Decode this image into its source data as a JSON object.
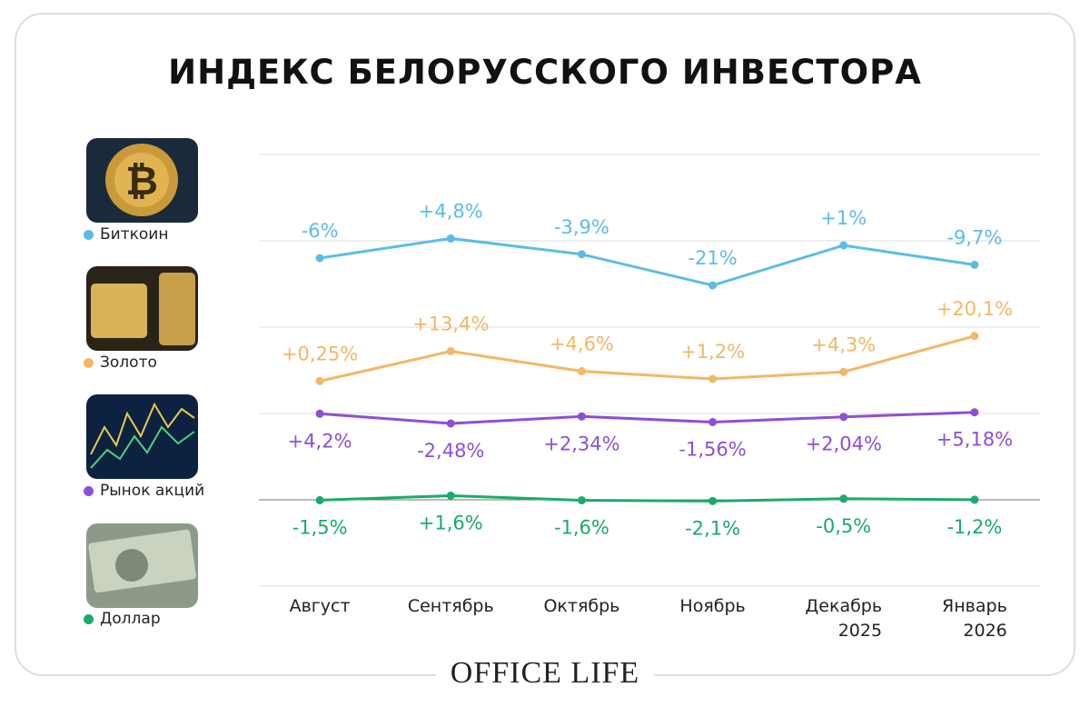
{
  "chart_data": {
    "type": "line",
    "title": "ИНДЕКС БЕЛОРУССКОГО ИНВЕСТОРА",
    "categories": [
      "Август",
      "Сентябрь",
      "Октябрь",
      "Ноябрь",
      "Декабрь 2025",
      "Январь 2026"
    ],
    "series": [
      {
        "name": "Биткоин",
        "color": "#5bbde6",
        "values": [
          -6,
          4.8,
          -3.9,
          -21,
          1,
          -9.7
        ],
        "value_labels": [
          "-6%",
          "+4,8%",
          "-3,9%",
          "-21%",
          "+1%",
          "-9,7%"
        ]
      },
      {
        "name": "Золото",
        "color": "#f2b865",
        "values": [
          0.25,
          13.4,
          4.6,
          1.2,
          4.3,
          20.1
        ],
        "value_labels": [
          "+0,25%",
          "+13,4%",
          "+4,6%",
          "+1,2%",
          "+4,3%",
          "+20,1%"
        ]
      },
      {
        "name": "Рынок акций",
        "color": "#8e4fd6",
        "values": [
          4.2,
          -2.48,
          2.34,
          -1.56,
          2.04,
          5.18
        ],
        "value_labels": [
          "+4,2%",
          "-2,48%",
          "+2,34%",
          "-1,56%",
          "+2,04%",
          "+5,18%"
        ]
      },
      {
        "name": "Доллар",
        "color": "#1aab6a",
        "values": [
          -1.5,
          1.6,
          -1.6,
          -2.1,
          -0.5,
          -1.2
        ],
        "value_labels": [
          "-1,5%",
          "+1,6%",
          "-1,6%",
          "-2,1%",
          "-0,5%",
          "-1,2%"
        ]
      }
    ]
  },
  "footer": "OFFICE LIFE"
}
